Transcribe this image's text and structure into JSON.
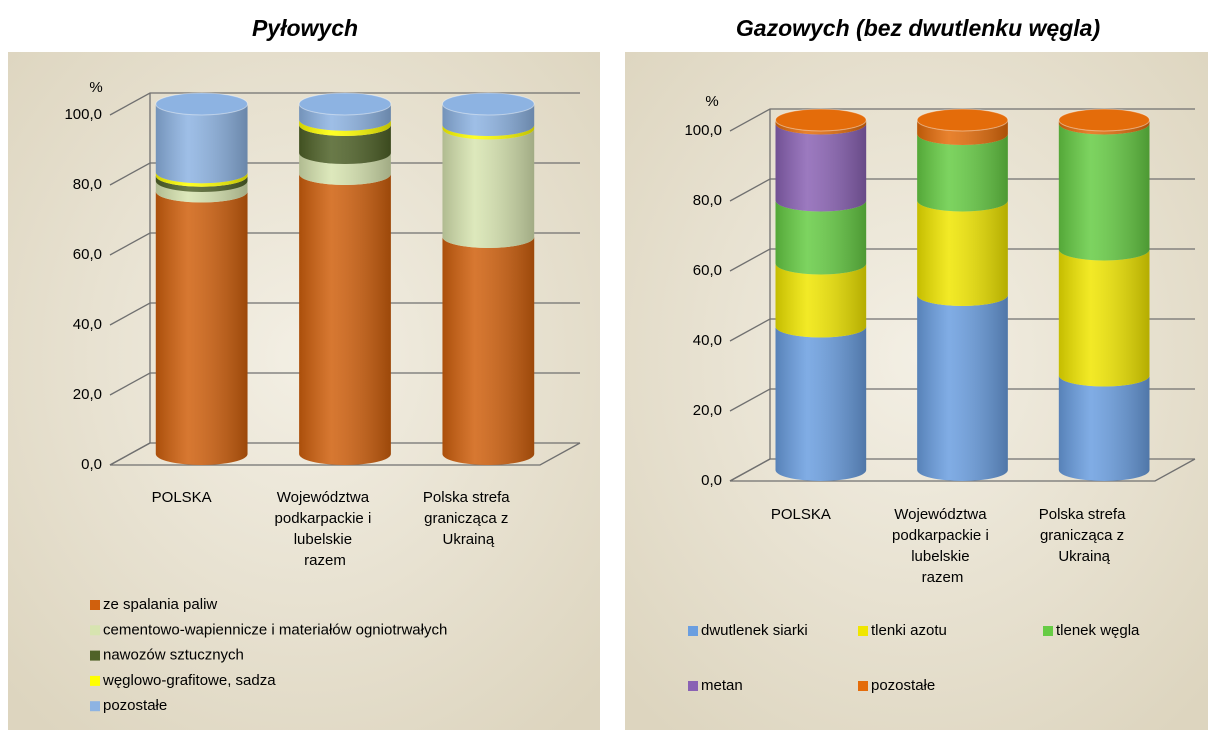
{
  "chart_data": [
    {
      "type": "bar",
      "stacked": true,
      "title": "Pyłowych",
      "y_label": "%",
      "categories": [
        "POLSKA",
        "Województwa podkarpackie i lubelskie razem",
        "Polska strefa granicząca z Ukrainą"
      ],
      "series": [
        {
          "name": "ze spalania paliw",
          "color": "#d0600d",
          "values": [
            75,
            80,
            62
          ]
        },
        {
          "name": "cementowo-wapiennicze i materiałów ogniotrwałych",
          "color": "#d7e4b0",
          "values": [
            3,
            6,
            31
          ]
        },
        {
          "name": "nawozów sztucznych",
          "color": "#4f6228",
          "values": [
            1.5,
            8,
            0
          ]
        },
        {
          "name": "węglowo-grafitowe, sadza",
          "color": "#ffff00",
          "values": [
            1,
            1.5,
            1
          ]
        },
        {
          "name": "pozostałe",
          "color": "#8db3e2",
          "values": [
            19.5,
            4.5,
            6
          ]
        }
      ],
      "ylim": [
        0,
        100
      ],
      "yticks": [
        {
          "value": 0,
          "label": "0,0"
        },
        {
          "value": 20,
          "label": "20,0"
        },
        {
          "value": 40,
          "label": "40,0"
        },
        {
          "value": 60,
          "label": "60,0"
        },
        {
          "value": 80,
          "label": "80,0"
        },
        {
          "value": 100,
          "label": "100,0"
        }
      ],
      "grid": true,
      "legend": "bottom"
    },
    {
      "type": "bar",
      "stacked": true,
      "title": "Gazowych (bez dwutlenku węgla)",
      "y_label": "%",
      "categories": [
        "POLSKA",
        "Województwa podkarpackie i lubelskie razem",
        "Polska strefa granicząca z Ukrainą"
      ],
      "series": [
        {
          "name": "dwutlenek siarki",
          "color": "#6a9ee0",
          "values": [
            41,
            50,
            27
          ]
        },
        {
          "name": "tlenki azotu",
          "color": "#f0e600",
          "values": [
            18,
            27,
            36
          ]
        },
        {
          "name": "tlenek węgla",
          "color": "#66cc44",
          "values": [
            18,
            19,
            36
          ]
        },
        {
          "name": "metan",
          "color": "#8a62b4",
          "values": [
            22,
            0,
            0
          ]
        },
        {
          "name": "pozostałe",
          "color": "#e46c0a",
          "values": [
            1,
            4,
            1
          ]
        }
      ],
      "ylim": [
        0,
        100
      ],
      "yticks": [
        {
          "value": 0,
          "label": "0,0"
        },
        {
          "value": 20,
          "label": "20,0"
        },
        {
          "value": 40,
          "label": "40,0"
        },
        {
          "value": 60,
          "label": "60,0"
        },
        {
          "value": 80,
          "label": "80,0"
        },
        {
          "value": 100,
          "label": "100,0"
        }
      ],
      "grid": true,
      "legend": "bottom"
    }
  ]
}
